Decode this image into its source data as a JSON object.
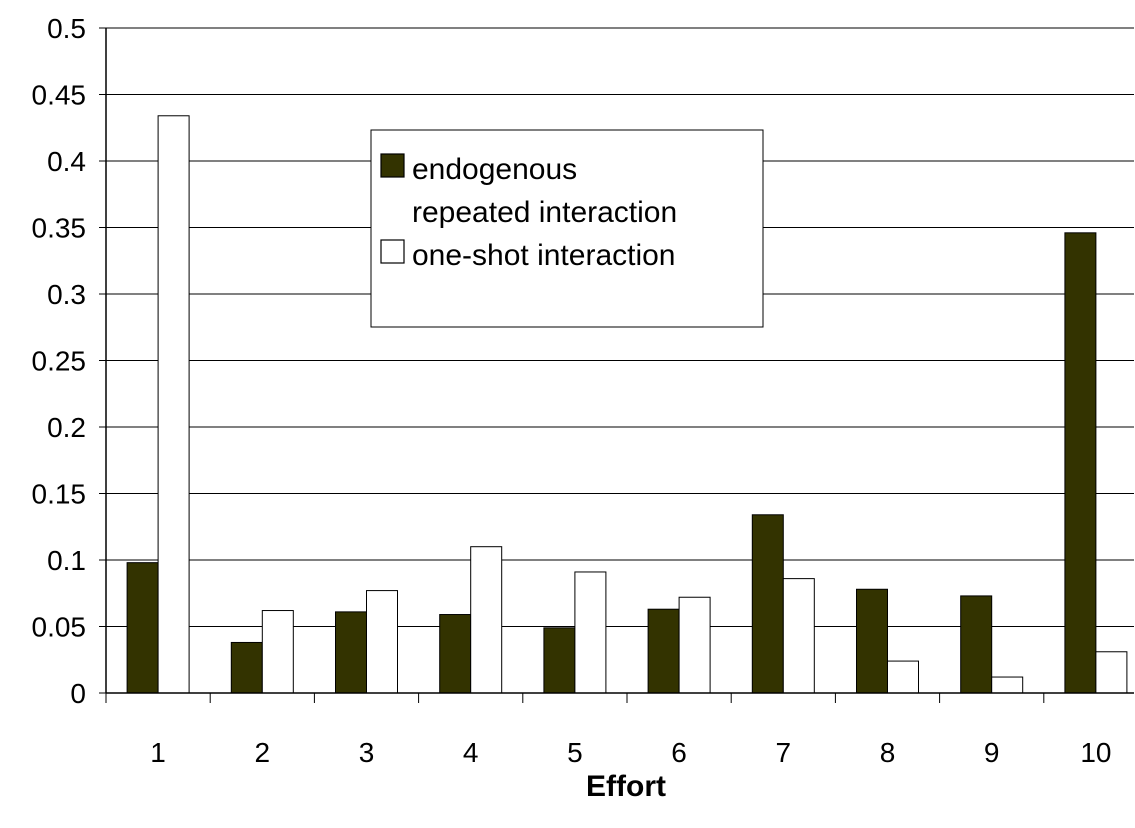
{
  "chart_data": {
    "type": "bar",
    "xlabel": "Effort",
    "ylabel": "",
    "ylim": [
      0,
      0.5
    ],
    "yticks": [
      "0",
      "0.05",
      "0.1",
      "0.15",
      "0.2",
      "0.25",
      "0.3",
      "0.35",
      "0.4",
      "0.45",
      "0.5"
    ],
    "categories": [
      "1",
      "2",
      "3",
      "4",
      "5",
      "6",
      "7",
      "8",
      "9",
      "10"
    ],
    "grid": true,
    "legend_position": "upper-center",
    "series": [
      {
        "name": "endogenous repeated interaction",
        "name_lines": [
          "endogenous",
          "repeated interaction"
        ],
        "color": "#333300",
        "values": [
          0.098,
          0.038,
          0.061,
          0.059,
          0.049,
          0.063,
          0.134,
          0.078,
          0.073,
          0.346
        ]
      },
      {
        "name": "one-shot interaction",
        "name_lines": [
          "one-shot interaction"
        ],
        "color": "#ffffff",
        "values": [
          0.434,
          0.062,
          0.077,
          0.11,
          0.091,
          0.072,
          0.086,
          0.024,
          0.012,
          0.031
        ]
      }
    ]
  }
}
